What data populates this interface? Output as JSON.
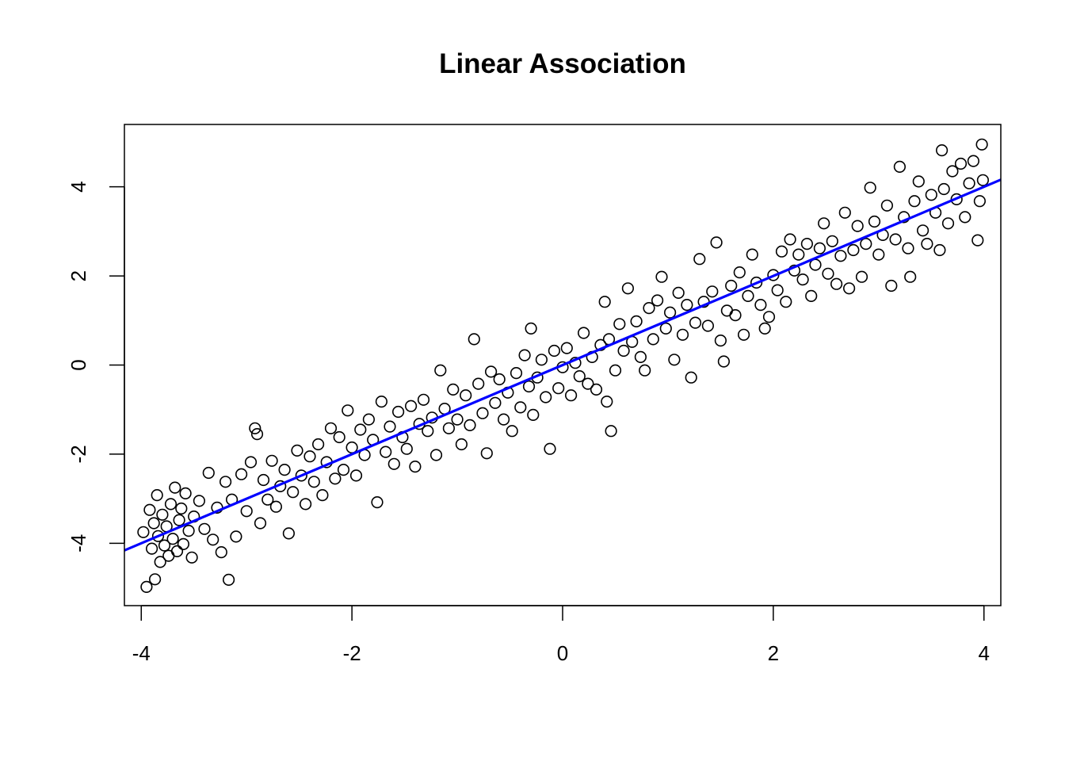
{
  "chart_data": {
    "type": "scatter",
    "title": "Linear Association",
    "xlabel": "",
    "ylabel": "",
    "xlim": [
      -4.16,
      4.16
    ],
    "ylim": [
      -5.4,
      5.4
    ],
    "x_ticks": [
      -4,
      -2,
      0,
      2,
      4
    ],
    "x_tick_labels": [
      "-4",
      "-2",
      "0",
      "2",
      "4"
    ],
    "y_ticks": [
      -4,
      -2,
      0,
      2,
      4
    ],
    "y_tick_labels": [
      "-4",
      "-2",
      "0",
      "2",
      "4"
    ],
    "grid": false,
    "point_color": "#000000",
    "line_color": "#0000ff",
    "fit_line": {
      "slope": 1.0,
      "intercept": 0.0
    },
    "series": [
      {
        "values": [
          [
            -3.98,
            -3.75
          ],
          [
            -3.95,
            -4.98
          ],
          [
            -3.92,
            -3.25
          ],
          [
            -3.9,
            -4.12
          ],
          [
            -3.88,
            -3.55
          ],
          [
            -3.87,
            -4.81
          ],
          [
            -3.85,
            -2.92
          ],
          [
            -3.84,
            -3.84
          ],
          [
            -3.82,
            -4.42
          ],
          [
            -3.8,
            -3.36
          ],
          [
            -3.78,
            -4.05
          ],
          [
            -3.76,
            -3.62
          ],
          [
            -3.74,
            -4.28
          ],
          [
            -3.72,
            -3.12
          ],
          [
            -3.7,
            -3.9
          ],
          [
            -3.68,
            -2.75
          ],
          [
            -3.66,
            -4.18
          ],
          [
            -3.64,
            -3.48
          ],
          [
            -3.62,
            -3.22
          ],
          [
            -3.6,
            -4.02
          ],
          [
            -3.58,
            -2.88
          ],
          [
            -3.55,
            -3.72
          ],
          [
            -3.52,
            -4.32
          ],
          [
            -3.5,
            -3.4
          ],
          [
            -3.45,
            -3.05
          ],
          [
            -3.4,
            -3.68
          ],
          [
            -3.36,
            -2.42
          ],
          [
            -3.32,
            -3.92
          ],
          [
            -3.28,
            -3.2
          ],
          [
            -3.24,
            -4.2
          ],
          [
            -3.2,
            -2.62
          ],
          [
            -3.17,
            -4.82
          ],
          [
            -3.14,
            -3.02
          ],
          [
            -3.1,
            -3.85
          ],
          [
            -3.05,
            -2.45
          ],
          [
            -3.0,
            -3.28
          ],
          [
            -2.96,
            -2.18
          ],
          [
            -2.92,
            -1.42
          ],
          [
            -2.9,
            -1.55
          ],
          [
            -2.87,
            -3.55
          ],
          [
            -2.84,
            -2.58
          ],
          [
            -2.8,
            -3.02
          ],
          [
            -2.76,
            -2.15
          ],
          [
            -2.72,
            -3.18
          ],
          [
            -2.68,
            -2.72
          ],
          [
            -2.64,
            -2.35
          ],
          [
            -2.6,
            -3.78
          ],
          [
            -2.56,
            -2.85
          ],
          [
            -2.52,
            -1.92
          ],
          [
            -2.48,
            -2.48
          ],
          [
            -2.44,
            -3.12
          ],
          [
            -2.4,
            -2.05
          ],
          [
            -2.36,
            -2.62
          ],
          [
            -2.32,
            -1.78
          ],
          [
            -2.28,
            -2.92
          ],
          [
            -2.24,
            -2.18
          ],
          [
            -2.2,
            -1.42
          ],
          [
            -2.16,
            -2.55
          ],
          [
            -2.12,
            -1.62
          ],
          [
            -2.08,
            -2.35
          ],
          [
            -2.04,
            -1.02
          ],
          [
            -2.0,
            -1.85
          ],
          [
            -1.96,
            -2.48
          ],
          [
            -1.92,
            -1.45
          ],
          [
            -1.88,
            -2.02
          ],
          [
            -1.84,
            -1.22
          ],
          [
            -1.8,
            -1.68
          ],
          [
            -1.76,
            -3.08
          ],
          [
            -1.72,
            -0.82
          ],
          [
            -1.68,
            -1.95
          ],
          [
            -1.64,
            -1.38
          ],
          [
            -1.6,
            -2.22
          ],
          [
            -1.56,
            -1.05
          ],
          [
            -1.52,
            -1.62
          ],
          [
            -1.48,
            -1.88
          ],
          [
            -1.44,
            -0.92
          ],
          [
            -1.4,
            -2.28
          ],
          [
            -1.36,
            -1.32
          ],
          [
            -1.32,
            -0.78
          ],
          [
            -1.28,
            -1.48
          ],
          [
            -1.24,
            -1.18
          ],
          [
            -1.2,
            -2.02
          ],
          [
            -1.16,
            -0.12
          ],
          [
            -1.12,
            -0.98
          ],
          [
            -1.08,
            -1.42
          ],
          [
            -1.04,
            -0.55
          ],
          [
            -1.0,
            -1.22
          ],
          [
            -0.96,
            -1.78
          ],
          [
            -0.92,
            -0.68
          ],
          [
            -0.88,
            -1.35
          ],
          [
            -0.84,
            0.58
          ],
          [
            -0.8,
            -0.42
          ],
          [
            -0.76,
            -1.08
          ],
          [
            -0.72,
            -1.98
          ],
          [
            -0.68,
            -0.15
          ],
          [
            -0.64,
            -0.85
          ],
          [
            -0.6,
            -0.32
          ],
          [
            -0.56,
            -1.22
          ],
          [
            -0.52,
            -0.62
          ],
          [
            -0.48,
            -1.48
          ],
          [
            -0.44,
            -0.18
          ],
          [
            -0.4,
            -0.95
          ],
          [
            -0.36,
            0.22
          ],
          [
            -0.32,
            -0.48
          ],
          [
            -0.3,
            0.82
          ],
          [
            -0.28,
            -1.12
          ],
          [
            -0.24,
            -0.28
          ],
          [
            -0.2,
            0.12
          ],
          [
            -0.16,
            -0.72
          ],
          [
            -0.12,
            -1.88
          ],
          [
            -0.08,
            0.32
          ],
          [
            -0.04,
            -0.52
          ],
          [
            0.0,
            -0.05
          ],
          [
            0.04,
            0.38
          ],
          [
            0.08,
            -0.68
          ],
          [
            0.12,
            0.05
          ],
          [
            0.16,
            -0.25
          ],
          [
            0.2,
            0.72
          ],
          [
            0.24,
            -0.42
          ],
          [
            0.28,
            0.18
          ],
          [
            0.32,
            -0.55
          ],
          [
            0.36,
            0.45
          ],
          [
            0.4,
            1.42
          ],
          [
            0.42,
            -0.82
          ],
          [
            0.44,
            0.58
          ],
          [
            0.46,
            -1.48
          ],
          [
            0.5,
            -0.12
          ],
          [
            0.54,
            0.92
          ],
          [
            0.58,
            0.32
          ],
          [
            0.62,
            1.72
          ],
          [
            0.66,
            0.52
          ],
          [
            0.7,
            0.98
          ],
          [
            0.74,
            0.18
          ],
          [
            0.78,
            -0.12
          ],
          [
            0.82,
            1.28
          ],
          [
            0.86,
            0.58
          ],
          [
            0.9,
            1.45
          ],
          [
            0.94,
            1.98
          ],
          [
            0.98,
            0.82
          ],
          [
            1.02,
            1.18
          ],
          [
            1.06,
            0.12
          ],
          [
            1.1,
            1.62
          ],
          [
            1.14,
            0.68
          ],
          [
            1.18,
            1.35
          ],
          [
            1.22,
            -0.28
          ],
          [
            1.26,
            0.95
          ],
          [
            1.3,
            2.38
          ],
          [
            1.34,
            1.42
          ],
          [
            1.38,
            0.88
          ],
          [
            1.42,
            1.65
          ],
          [
            1.46,
            2.75
          ],
          [
            1.5,
            0.55
          ],
          [
            1.53,
            0.08
          ],
          [
            1.56,
            1.22
          ],
          [
            1.6,
            1.78
          ],
          [
            1.64,
            1.12
          ],
          [
            1.68,
            2.08
          ],
          [
            1.72,
            0.68
          ],
          [
            1.76,
            1.55
          ],
          [
            1.8,
            2.48
          ],
          [
            1.84,
            1.85
          ],
          [
            1.88,
            1.35
          ],
          [
            1.92,
            0.82
          ],
          [
            1.96,
            1.08
          ],
          [
            2.0,
            2.02
          ],
          [
            2.04,
            1.68
          ],
          [
            2.08,
            2.55
          ],
          [
            2.12,
            1.42
          ],
          [
            2.16,
            2.82
          ],
          [
            2.2,
            2.12
          ],
          [
            2.24,
            2.48
          ],
          [
            2.28,
            1.92
          ],
          [
            2.32,
            2.72
          ],
          [
            2.36,
            1.55
          ],
          [
            2.4,
            2.25
          ],
          [
            2.44,
            2.62
          ],
          [
            2.48,
            3.18
          ],
          [
            2.52,
            2.05
          ],
          [
            2.56,
            2.78
          ],
          [
            2.6,
            1.82
          ],
          [
            2.64,
            2.45
          ],
          [
            2.68,
            3.42
          ],
          [
            2.72,
            1.72
          ],
          [
            2.76,
            2.58
          ],
          [
            2.8,
            3.12
          ],
          [
            2.84,
            1.98
          ],
          [
            2.88,
            2.72
          ],
          [
            2.92,
            3.98
          ],
          [
            2.96,
            3.22
          ],
          [
            3.0,
            2.48
          ],
          [
            3.04,
            2.92
          ],
          [
            3.08,
            3.58
          ],
          [
            3.12,
            1.78
          ],
          [
            3.16,
            2.82
          ],
          [
            3.2,
            4.45
          ],
          [
            3.24,
            3.32
          ],
          [
            3.28,
            2.62
          ],
          [
            3.3,
            1.98
          ],
          [
            3.34,
            3.68
          ],
          [
            3.38,
            4.12
          ],
          [
            3.42,
            3.02
          ],
          [
            3.46,
            2.72
          ],
          [
            3.5,
            3.82
          ],
          [
            3.54,
            3.42
          ],
          [
            3.58,
            2.58
          ],
          [
            3.6,
            4.82
          ],
          [
            3.62,
            3.95
          ],
          [
            3.66,
            3.18
          ],
          [
            3.7,
            4.35
          ],
          [
            3.74,
            3.72
          ],
          [
            3.78,
            4.52
          ],
          [
            3.82,
            3.32
          ],
          [
            3.86,
            4.08
          ],
          [
            3.9,
            4.58
          ],
          [
            3.94,
            2.8
          ],
          [
            3.96,
            3.68
          ],
          [
            3.98,
            4.95
          ],
          [
            3.99,
            4.15
          ]
        ]
      }
    ]
  }
}
